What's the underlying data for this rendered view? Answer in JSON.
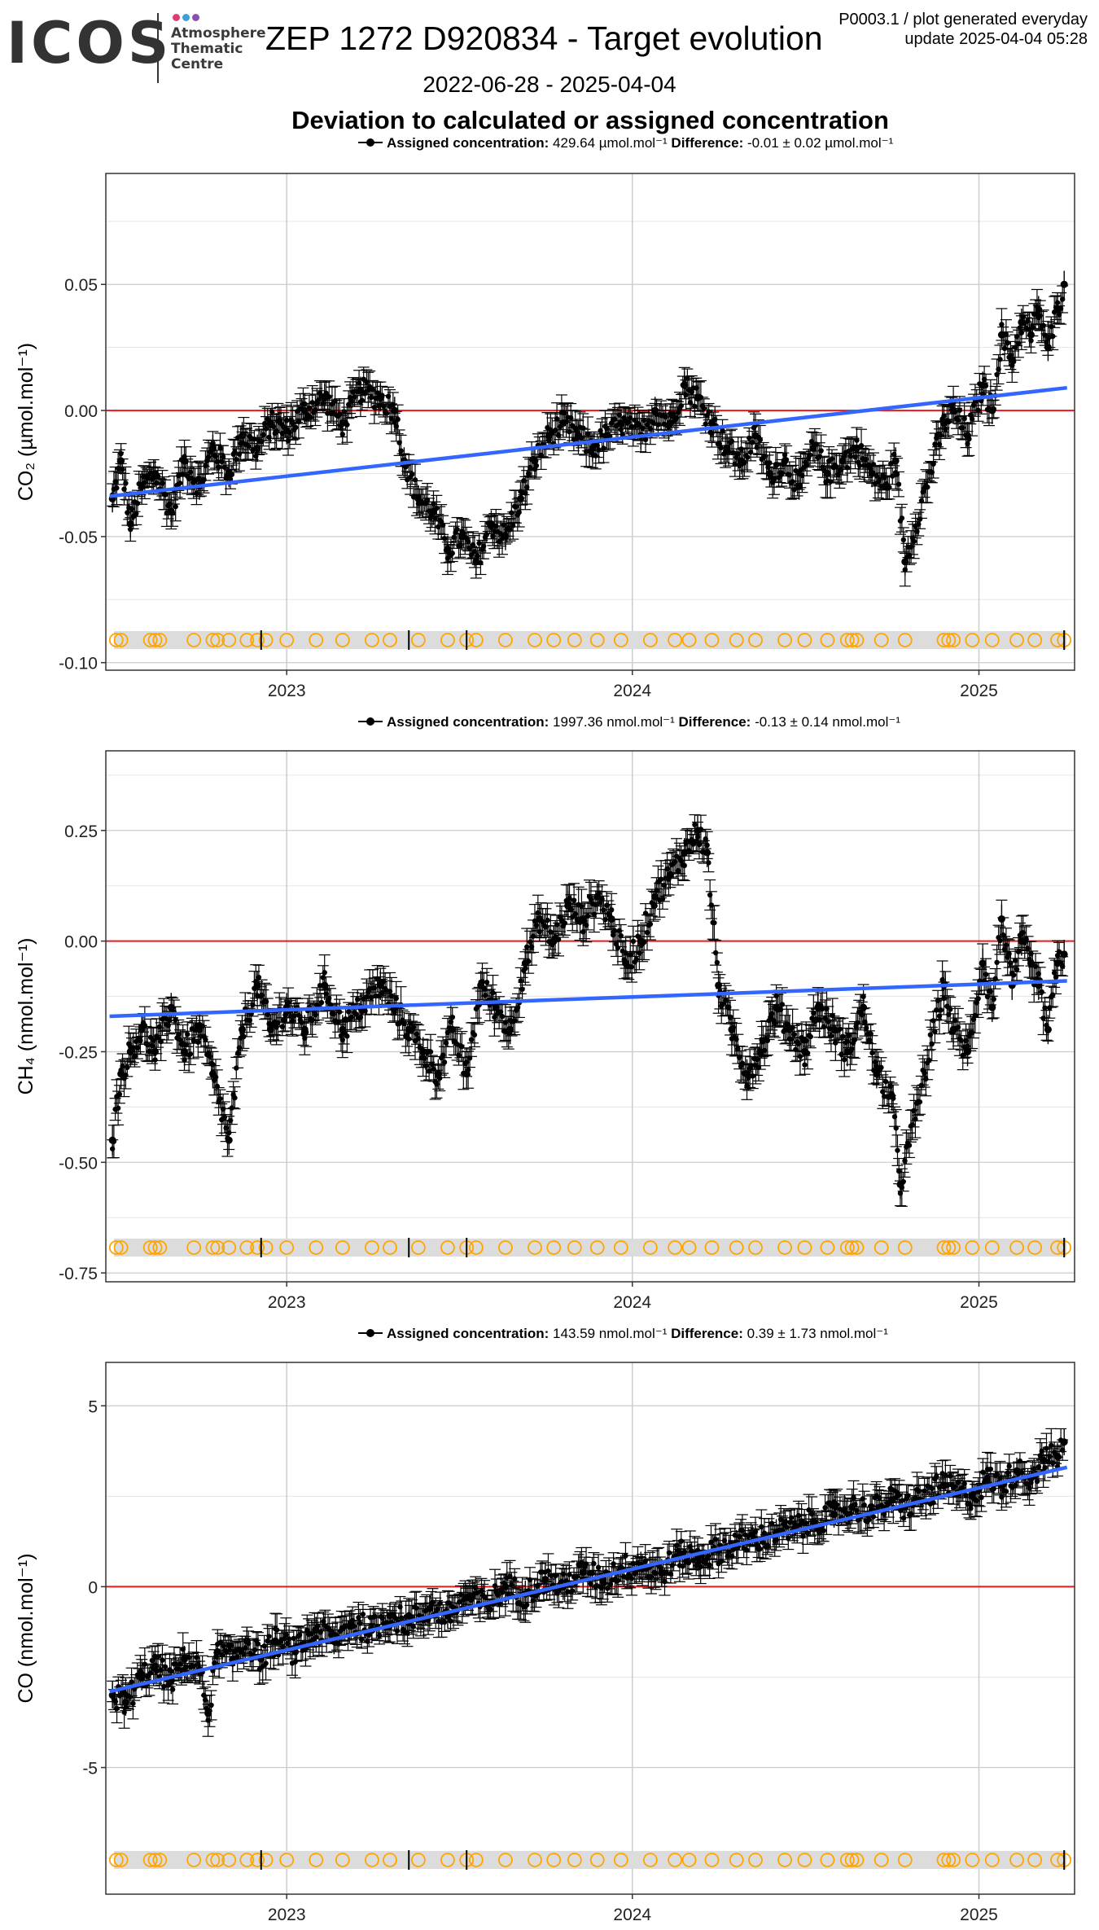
{
  "header": {
    "logo": "ICOS",
    "org_lines": [
      "Atmosphere",
      "Thematic",
      "Centre"
    ],
    "dot_colors": [
      "#e03c74",
      "#3aa0d8",
      "#8a4fb0"
    ],
    "title": "ZEP 1272 D920834 - Target evolution",
    "info_line1": "P0003.1 / plot generated everyday",
    "info_line2": "update  2025-04-04 05:28",
    "date_range": "2022-06-28 - 2025-04-04",
    "section_title": "Deviation to calculated or assigned concentration"
  },
  "colors": {
    "points": "#000000",
    "trend": "#3366ff",
    "zero_line": "#e41a1c",
    "markers": "#ffa500",
    "band": "#dcdcdc",
    "grid": "#e5e5e5",
    "grid_major": "#cccccc"
  },
  "chart_data": [
    {
      "type": "scatter",
      "gas": "CO2",
      "legend": {
        "series": "Assigned concentration:",
        "assigned": "429.64 µmol.mol⁻¹",
        "diff_label": "Difference:",
        "difference": "-0.01 ± 0.02 µmol.mol⁻¹"
      },
      "ylabel": "CO₂ (µmol.mol⁻¹)",
      "ylim": [
        -0.103,
        0.094
      ],
      "yticks": [
        0.05,
        0.0,
        -0.05,
        -0.1
      ],
      "ytick_labels": [
        "0.05",
        "0.00",
        "-0.05",
        "-0.10"
      ],
      "xticks": [
        "2023",
        "2024",
        "2025"
      ],
      "xlim": [
        "2022-06-24",
        "2025-04-12"
      ],
      "trend": {
        "start": [
          "2022-06-28",
          -0.034
        ],
        "end": [
          "2025-04-04",
          0.009
        ]
      },
      "series": [
        {
          "name": "Assigned concentration",
          "points": [
            [
              "2022-07-01",
              -0.035
            ],
            [
              "2022-07-10",
              -0.02
            ],
            [
              "2022-07-20",
              -0.045
            ],
            [
              "2022-08-01",
              -0.03
            ],
            [
              "2022-08-15",
              -0.025
            ],
            [
              "2022-09-01",
              -0.04
            ],
            [
              "2022-09-15",
              -0.02
            ],
            [
              "2022-10-01",
              -0.03
            ],
            [
              "2022-10-15",
              -0.015
            ],
            [
              "2022-11-01",
              -0.025
            ],
            [
              "2022-11-15",
              -0.01
            ],
            [
              "2022-12-01",
              -0.015
            ],
            [
              "2022-12-15",
              -0.005
            ],
            [
              "2023-01-01",
              -0.008
            ],
            [
              "2023-01-20",
              0.0
            ],
            [
              "2023-02-10",
              0.005
            ],
            [
              "2023-03-01",
              -0.005
            ],
            [
              "2023-03-20",
              0.008
            ],
            [
              "2023-04-10",
              0.005
            ],
            [
              "2023-04-25",
              0.0
            ],
            [
              "2023-05-05",
              -0.02
            ],
            [
              "2023-05-20",
              -0.035
            ],
            [
              "2023-06-05",
              -0.04
            ],
            [
              "2023-06-20",
              -0.055
            ],
            [
              "2023-07-05",
              -0.05
            ],
            [
              "2023-07-20",
              -0.06
            ],
            [
              "2023-08-05",
              -0.045
            ],
            [
              "2023-08-20",
              -0.05
            ],
            [
              "2023-09-05",
              -0.035
            ],
            [
              "2023-09-20",
              -0.02
            ],
            [
              "2023-10-05",
              -0.01
            ],
            [
              "2023-10-20",
              -0.005
            ],
            [
              "2023-11-05",
              -0.01
            ],
            [
              "2023-11-20",
              -0.015
            ],
            [
              "2023-12-05",
              -0.01
            ],
            [
              "2023-12-20",
              -0.005
            ],
            [
              "2024-01-10",
              -0.01
            ],
            [
              "2024-01-25",
              0.0
            ],
            [
              "2024-02-10",
              -0.005
            ],
            [
              "2024-02-25",
              0.01
            ],
            [
              "2024-03-10",
              0.005
            ],
            [
              "2024-03-25",
              -0.005
            ],
            [
              "2024-04-10",
              -0.015
            ],
            [
              "2024-04-25",
              -0.02
            ],
            [
              "2024-05-10",
              -0.01
            ],
            [
              "2024-05-25",
              -0.025
            ],
            [
              "2024-06-10",
              -0.02
            ],
            [
              "2024-06-25",
              -0.03
            ],
            [
              "2024-07-10",
              -0.015
            ],
            [
              "2024-07-25",
              -0.025
            ],
            [
              "2024-08-10",
              -0.02
            ],
            [
              "2024-08-25",
              -0.015
            ],
            [
              "2024-09-10",
              -0.025
            ],
            [
              "2024-09-25",
              -0.03
            ],
            [
              "2024-10-05",
              -0.02
            ],
            [
              "2024-10-15",
              -0.06
            ],
            [
              "2024-11-25",
              -0.005
            ],
            [
              "2024-12-05",
              0.0
            ],
            [
              "2024-12-20",
              -0.01
            ],
            [
              "2025-01-05",
              0.01
            ],
            [
              "2025-01-15",
              0.0
            ],
            [
              "2025-01-25",
              0.03
            ],
            [
              "2025-02-05",
              0.02
            ],
            [
              "2025-02-15",
              0.035
            ],
            [
              "2025-02-25",
              0.03
            ],
            [
              "2025-03-05",
              0.04
            ],
            [
              "2025-03-15",
              0.025
            ],
            [
              "2025-03-25",
              0.04
            ],
            [
              "2025-04-01",
              0.05
            ]
          ]
        }
      ]
    },
    {
      "type": "scatter",
      "gas": "CH4",
      "legend": {
        "series": "Assigned concentration:",
        "assigned": "1997.36 nmol.mol⁻¹",
        "diff_label": "Difference:",
        "difference": "-0.13 ± 0.14 nmol.mol⁻¹"
      },
      "ylabel": "CH₄ (nmol.mol⁻¹)",
      "ylim": [
        -0.77,
        0.43
      ],
      "yticks": [
        0.25,
        0.0,
        -0.25,
        -0.5,
        -0.75
      ],
      "ytick_labels": [
        "0.25",
        "0.00",
        "-0.25",
        "-0.50",
        "-0.75"
      ],
      "xticks": [
        "2023",
        "2024",
        "2025"
      ],
      "xlim": [
        "2022-06-24",
        "2025-04-12"
      ],
      "trend": {
        "start": [
          "2022-06-28",
          -0.17
        ],
        "end": [
          "2025-04-04",
          -0.09
        ]
      },
      "series": [
        {
          "name": "Assigned concentration",
          "points": [
            [
              "2022-07-01",
              -0.45
            ],
            [
              "2022-07-10",
              -0.3
            ],
            [
              "2022-07-20",
              -0.25
            ],
            [
              "2022-08-01",
              -0.2
            ],
            [
              "2022-08-15",
              -0.25
            ],
            [
              "2022-09-01",
              -0.15
            ],
            [
              "2022-09-15",
              -0.25
            ],
            [
              "2022-10-01",
              -0.2
            ],
            [
              "2022-10-15",
              -0.3
            ],
            [
              "2022-11-01",
              -0.45
            ],
            [
              "2022-11-15",
              -0.2
            ],
            [
              "2022-12-01",
              -0.1
            ],
            [
              "2022-12-15",
              -0.2
            ],
            [
              "2023-01-01",
              -0.15
            ],
            [
              "2023-01-20",
              -0.2
            ],
            [
              "2023-02-10",
              -0.1
            ],
            [
              "2023-03-01",
              -0.2
            ],
            [
              "2023-03-20",
              -0.15
            ],
            [
              "2023-04-10",
              -0.1
            ],
            [
              "2023-04-25",
              -0.15
            ],
            [
              "2023-05-10",
              -0.2
            ],
            [
              "2023-05-25",
              -0.25
            ],
            [
              "2023-06-10",
              -0.3
            ],
            [
              "2023-06-25",
              -0.2
            ],
            [
              "2023-07-10",
              -0.3
            ],
            [
              "2023-07-25",
              -0.1
            ],
            [
              "2023-08-10",
              -0.15
            ],
            [
              "2023-08-25",
              -0.2
            ],
            [
              "2023-09-10",
              -0.05
            ],
            [
              "2023-09-25",
              0.05
            ],
            [
              "2023-10-10",
              0.0
            ],
            [
              "2023-10-25",
              0.08
            ],
            [
              "2023-11-10",
              0.05
            ],
            [
              "2023-11-25",
              0.1
            ],
            [
              "2023-12-10",
              0.05
            ],
            [
              "2023-12-25",
              -0.05
            ],
            [
              "2024-01-10",
              0.0
            ],
            [
              "2024-01-25",
              0.1
            ],
            [
              "2024-02-10",
              0.15
            ],
            [
              "2024-02-25",
              0.2
            ],
            [
              "2024-03-10",
              0.25
            ],
            [
              "2024-03-20",
              0.2
            ],
            [
              "2024-04-01",
              -0.1
            ],
            [
              "2024-04-15",
              -0.2
            ],
            [
              "2024-05-01",
              -0.3
            ],
            [
              "2024-05-15",
              -0.25
            ],
            [
              "2024-06-01",
              -0.15
            ],
            [
              "2024-06-15",
              -0.2
            ],
            [
              "2024-07-01",
              -0.25
            ],
            [
              "2024-07-15",
              -0.15
            ],
            [
              "2024-08-01",
              -0.2
            ],
            [
              "2024-08-15",
              -0.25
            ],
            [
              "2024-09-01",
              -0.15
            ],
            [
              "2024-09-15",
              -0.3
            ],
            [
              "2024-10-01",
              -0.35
            ],
            [
              "2024-10-10",
              -0.55
            ],
            [
              "2024-11-25",
              -0.1
            ],
            [
              "2024-12-05",
              -0.2
            ],
            [
              "2024-12-20",
              -0.25
            ],
            [
              "2025-01-05",
              -0.05
            ],
            [
              "2025-01-15",
              -0.15
            ],
            [
              "2025-01-25",
              0.05
            ],
            [
              "2025-02-05",
              -0.1
            ],
            [
              "2025-02-15",
              0.0
            ],
            [
              "2025-02-25",
              -0.05
            ],
            [
              "2025-03-05",
              -0.1
            ],
            [
              "2025-03-15",
              -0.2
            ],
            [
              "2025-03-25",
              -0.05
            ],
            [
              "2025-04-01",
              -0.03
            ]
          ]
        }
      ]
    },
    {
      "type": "scatter",
      "gas": "CO",
      "legend": {
        "series": "Assigned concentration:",
        "assigned": "143.59 nmol.mol⁻¹",
        "diff_label": "Difference:",
        "difference": "0.39 ± 1.73 nmol.mol⁻¹"
      },
      "ylabel": "CO (nmol.mol⁻¹)",
      "ylim": [
        -8.5,
        6.2
      ],
      "yticks": [
        5,
        0,
        -5
      ],
      "ytick_labels": [
        "5",
        "0",
        "-5"
      ],
      "xticks": [
        "2023",
        "2024",
        "2025"
      ],
      "xlim": [
        "2022-06-24",
        "2025-04-12"
      ],
      "trend": {
        "start": [
          "2022-06-28",
          -2.9
        ],
        "end": [
          "2025-04-04",
          3.3
        ]
      },
      "series": [
        {
          "name": "Assigned concentration",
          "points": [
            [
              "2022-07-01",
              -3.0
            ],
            [
              "2022-07-15",
              -3.2
            ],
            [
              "2022-08-01",
              -2.5
            ],
            [
              "2022-08-15",
              -2.2
            ],
            [
              "2022-09-01",
              -2.6
            ],
            [
              "2022-09-15",
              -2.0
            ],
            [
              "2022-10-01",
              -2.3
            ],
            [
              "2022-10-10",
              -3.5
            ],
            [
              "2022-10-20",
              -1.8
            ],
            [
              "2022-11-05",
              -2.0
            ],
            [
              "2022-11-20",
              -1.5
            ],
            [
              "2022-12-05",
              -2.0
            ],
            [
              "2022-12-20",
              -1.5
            ],
            [
              "2023-01-10",
              -1.8
            ],
            [
              "2023-02-01",
              -1.2
            ],
            [
              "2023-02-20",
              -1.5
            ],
            [
              "2023-03-10",
              -1.0
            ],
            [
              "2023-04-01",
              -1.2
            ],
            [
              "2023-04-20",
              -0.8
            ],
            [
              "2023-05-10",
              -1.0
            ],
            [
              "2023-06-01",
              -0.6
            ],
            [
              "2023-06-20",
              -0.8
            ],
            [
              "2023-07-10",
              -0.3
            ],
            [
              "2023-08-01",
              -0.5
            ],
            [
              "2023-08-20",
              0.0
            ],
            [
              "2023-09-10",
              -0.2
            ],
            [
              "2023-10-01",
              0.2
            ],
            [
              "2023-10-20",
              0.0
            ],
            [
              "2023-11-10",
              0.4
            ],
            [
              "2023-12-01",
              0.2
            ],
            [
              "2023-12-20",
              0.5
            ],
            [
              "2024-01-10",
              0.6
            ],
            [
              "2024-02-01",
              0.4
            ],
            [
              "2024-02-20",
              0.9
            ],
            [
              "2024-03-10",
              0.8
            ],
            [
              "2024-04-01",
              1.0
            ],
            [
              "2024-04-20",
              1.2
            ],
            [
              "2024-05-10",
              1.3
            ],
            [
              "2024-06-01",
              1.5
            ],
            [
              "2024-06-20",
              1.6
            ],
            [
              "2024-07-10",
              1.8
            ],
            [
              "2024-08-01",
              2.0
            ],
            [
              "2024-08-20",
              2.2
            ],
            [
              "2024-09-10",
              2.1
            ],
            [
              "2024-10-01",
              2.4
            ],
            [
              "2024-10-15",
              2.2
            ],
            [
              "2024-11-25",
              2.8
            ],
            [
              "2024-12-10",
              2.6
            ],
            [
              "2024-12-25",
              2.5
            ],
            [
              "2025-01-10",
              3.0
            ],
            [
              "2025-01-25",
              2.8
            ],
            [
              "2025-02-10",
              3.2
            ],
            [
              "2025-02-25",
              3.0
            ],
            [
              "2025-03-10",
              3.5
            ],
            [
              "2025-03-25",
              3.6
            ],
            [
              "2025-04-01",
              4.0
            ]
          ]
        }
      ]
    }
  ],
  "markers": {
    "circles": [
      "2022-07-05",
      "2022-07-10",
      "2022-08-10",
      "2022-08-15",
      "2022-08-20",
      "2022-09-25",
      "2022-10-15",
      "2022-10-20",
      "2022-11-01",
      "2022-11-20",
      "2022-12-01",
      "2022-12-10",
      "2023-01-01",
      "2023-02-01",
      "2023-03-01",
      "2023-04-01",
      "2023-04-20",
      "2023-05-20",
      "2023-06-20",
      "2023-07-10",
      "2023-07-20",
      "2023-08-20",
      "2023-09-20",
      "2023-10-10",
      "2023-11-01",
      "2023-11-25",
      "2023-12-20",
      "2024-01-20",
      "2024-02-15",
      "2024-03-01",
      "2024-03-25",
      "2024-04-20",
      "2024-05-10",
      "2024-06-10",
      "2024-07-01",
      "2024-07-25",
      "2024-08-15",
      "2024-08-20",
      "2024-08-25",
      "2024-09-20",
      "2024-10-15",
      "2024-11-25",
      "2024-11-30",
      "2024-12-05",
      "2024-12-25",
      "2025-01-15",
      "2025-02-10",
      "2025-03-01",
      "2025-03-25",
      "2025-04-01"
    ],
    "ticks": [
      "2022-12-05",
      "2023-05-10",
      "2023-07-10",
      "2025-04-01"
    ]
  }
}
